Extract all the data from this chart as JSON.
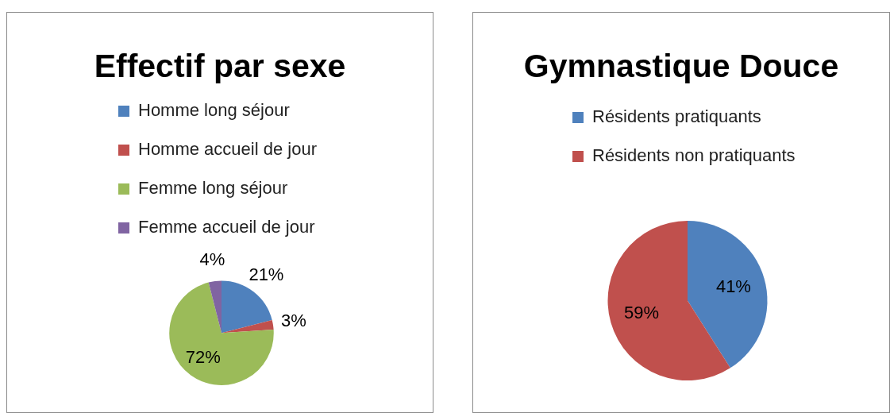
{
  "chart_data": [
    {
      "type": "pie",
      "title": "Effectif par sexe",
      "categories": [
        "Homme long séjour",
        "Homme accueil de jour",
        "Femme long séjour",
        "Femme accueil de jour"
      ],
      "values": [
        21,
        3,
        72,
        4
      ],
      "colors": [
        "#4f81bd",
        "#c0504d",
        "#9bbb59",
        "#8064a2"
      ],
      "value_labels": [
        "21%",
        "3%",
        "72%",
        "4%"
      ],
      "legend": "top"
    },
    {
      "type": "pie",
      "title": "Gymnastique Douce",
      "categories": [
        "Résidents pratiquants",
        "Résidents non pratiquants"
      ],
      "values": [
        41,
        59
      ],
      "colors": [
        "#4f81bd",
        "#c0504d"
      ],
      "value_labels": [
        "41%",
        "59%"
      ],
      "legend": "top"
    }
  ]
}
